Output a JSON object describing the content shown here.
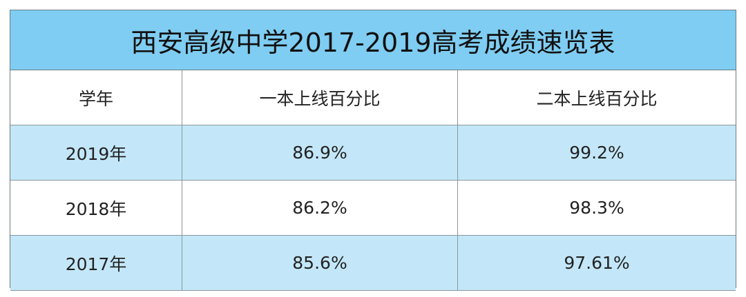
{
  "header": {
    "title": "西安高级中学2017-2019高考成绩速览表"
  },
  "table": {
    "columns": [
      "学年",
      "一本上线百分比",
      "二本上线百分比"
    ],
    "rows": [
      [
        "2019年",
        "86.9%",
        "99.2%"
      ],
      [
        "2018年",
        "86.2%",
        "98.3%"
      ],
      [
        "2017年",
        "85.6%",
        "97.61%"
      ]
    ]
  }
}
